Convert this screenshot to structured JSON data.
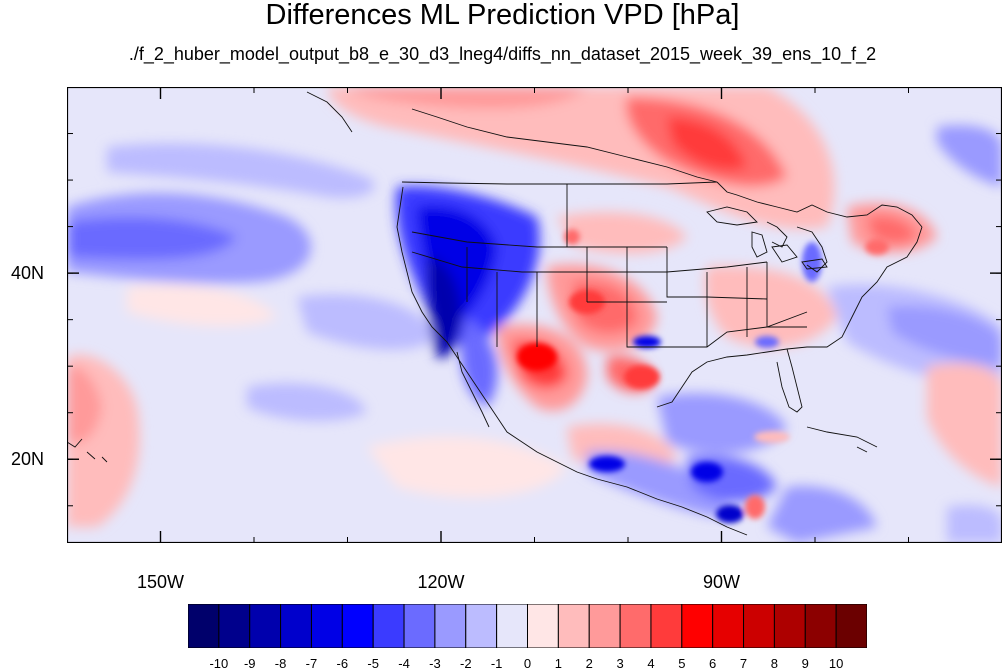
{
  "title": "Differences ML Prediction VPD [hPa]",
  "subtitle": "./f_2_huber_model_output_b8_e_30_d3_lneg4/diffs_nn_dataset_2015_week_39_ens_10_f_2",
  "map": {
    "lon_range": [
      -160,
      -60
    ],
    "lat_range": [
      11,
      60
    ],
    "lon_ticks": [
      {
        "value": -150,
        "label": "150W"
      },
      {
        "value": -120,
        "label": "120W"
      },
      {
        "value": -90,
        "label": "90W"
      }
    ],
    "lat_ticks": [
      {
        "value": 40,
        "label": "40N"
      },
      {
        "value": 20,
        "label": "20N"
      }
    ]
  },
  "colorbar": {
    "labels": [
      "-10",
      "-9",
      "-8",
      "-7",
      "-6",
      "-5",
      "-4",
      "-3",
      "-2",
      "-1",
      "0",
      "1",
      "2",
      "3",
      "4",
      "5",
      "6",
      "7",
      "8",
      "9",
      "10"
    ],
    "colors": [
      "#00006b",
      "#00008c",
      "#0000ad",
      "#0000cc",
      "#0000e6",
      "#0000ff",
      "#3b3bff",
      "#6b6bff",
      "#9a9aff",
      "#bcbcff",
      "#e6e6fa",
      "#ffe6e6",
      "#ffbcbc",
      "#ff9a9a",
      "#ff6b6b",
      "#ff3b3b",
      "#ff0000",
      "#e60000",
      "#cc0000",
      "#ad0000",
      "#8c0000",
      "#6b0000"
    ]
  }
}
